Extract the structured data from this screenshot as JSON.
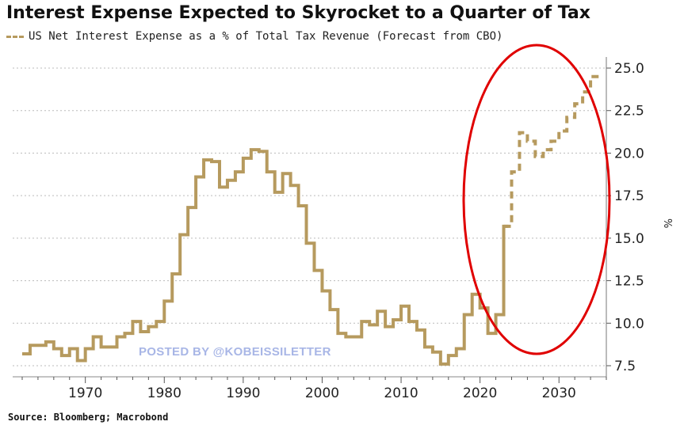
{
  "header": {
    "title": "Interest Expense Expected to Skyrocket to a Quarter of Tax"
  },
  "footer": {
    "source": "Source: Bloomberg; Macrobond",
    "watermark": "POSTED BY @KOBEISSILETTER"
  },
  "colors": {
    "series": "#b69a5e",
    "grid": "#bbbbbb",
    "highlight": "#e00000"
  },
  "chart_data": {
    "type": "line",
    "legend": {
      "label": "US Net Interest Expense as a % of Total Tax Revenue (Forecast from CBO)",
      "placement": "top-left"
    },
    "ylabel": "%",
    "ylim": [
      7.5,
      25.0
    ],
    "yticks": [
      7.5,
      10.0,
      12.5,
      15.0,
      17.5,
      20.0,
      22.5,
      25.0
    ],
    "ytick_labels": [
      "7.5",
      "10.0",
      "12.5",
      "15.0",
      "17.5",
      "20.0",
      "22.5",
      "25.0"
    ],
    "xlim": [
      1962,
      2036
    ],
    "xticks": [
      1970,
      1980,
      1990,
      2000,
      2010,
      2020,
      2030
    ],
    "xtick_labels": [
      "1970",
      "1980",
      "1990",
      "2000",
      "2010",
      "2020",
      "2030"
    ],
    "grid": true,
    "step": true,
    "series": [
      {
        "style": "solid",
        "x": [
          1962,
          1963,
          1964,
          1965,
          1966,
          1967,
          1968,
          1969,
          1970,
          1971,
          1972,
          1973,
          1974,
          1975,
          1976,
          1977,
          1978,
          1979,
          1980,
          1981,
          1982,
          1983,
          1984,
          1985,
          1986,
          1987,
          1988,
          1989,
          1990,
          1991,
          1992,
          1993,
          1994,
          1995,
          1996,
          1997,
          1998,
          1999,
          2000,
          2001,
          2002,
          2003,
          2004,
          2005,
          2006,
          2007,
          2008,
          2009,
          2010,
          2011,
          2012,
          2013,
          2014,
          2015,
          2016,
          2017,
          2018,
          2019,
          2020,
          2021,
          2022,
          2023
        ],
        "y": [
          8.2,
          8.7,
          8.7,
          8.9,
          8.5,
          8.1,
          8.5,
          7.8,
          8.5,
          9.2,
          8.6,
          8.6,
          9.2,
          9.4,
          10.1,
          9.5,
          9.8,
          10.1,
          11.3,
          12.9,
          15.2,
          16.8,
          18.6,
          19.6,
          19.5,
          18.0,
          18.4,
          18.9,
          19.7,
          20.2,
          20.1,
          18.9,
          17.7,
          18.8,
          18.1,
          16.9,
          14.7,
          13.1,
          11.9,
          10.8,
          9.4,
          9.2,
          9.2,
          10.1,
          9.9,
          10.7,
          9.8,
          10.2,
          11.0,
          10.1,
          9.6,
          8.6,
          8.3,
          7.6,
          8.1,
          8.5,
          10.5,
          11.7,
          10.9,
          9.4,
          10.5,
          15.7
        ]
      },
      {
        "style": "dashed",
        "x": [
          2023,
          2024,
          2025,
          2026,
          2027,
          2028,
          2029,
          2030,
          2031,
          2032,
          2033,
          2034,
          2035
        ],
        "y": [
          15.7,
          18.9,
          21.2,
          20.7,
          19.8,
          20.2,
          20.7,
          21.3,
          22.1,
          22.9,
          23.6,
          24.5,
          24.5
        ]
      }
    ]
  }
}
